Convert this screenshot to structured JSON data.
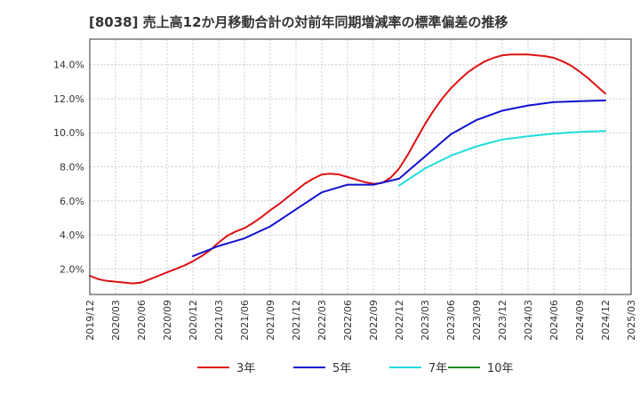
{
  "chart_data": {
    "type": "line",
    "title": "[8038]  売上高12か月移動合計の対前年同期増減率の標準偏差の推移",
    "xlabel": "",
    "ylabel": "",
    "x_ticks": [
      "2019/12",
      "2020/03",
      "2020/06",
      "2020/09",
      "2020/12",
      "2021/03",
      "2021/06",
      "2021/09",
      "2021/12",
      "2022/03",
      "2022/06",
      "2022/09",
      "2022/12",
      "2023/03",
      "2023/06",
      "2023/09",
      "2023/12",
      "2024/03",
      "2024/06",
      "2024/09",
      "2024/12",
      "2025/03"
    ],
    "y_ticks": [
      "2.0%",
      "4.0%",
      "6.0%",
      "8.0%",
      "10.0%",
      "12.0%",
      "14.0%"
    ],
    "ylim": [
      0.5,
      15.5
    ],
    "grid": true,
    "legend_position": "bottom",
    "series": [
      {
        "name": "3年",
        "color": "#dd1111",
        "x": [
          "2019/12",
          "2020/01",
          "2020/02",
          "2020/03",
          "2020/04",
          "2020/05",
          "2020/06",
          "2020/07",
          "2020/08",
          "2020/09",
          "2020/10",
          "2020/11",
          "2020/12",
          "2021/01",
          "2021/02",
          "2021/03",
          "2021/04",
          "2021/05",
          "2021/06",
          "2021/07",
          "2021/08",
          "2021/09",
          "2021/10",
          "2021/11",
          "2021/12",
          "2022/01",
          "2022/02",
          "2022/03",
          "2022/04",
          "2022/05",
          "2022/06",
          "2022/07",
          "2022/08",
          "2022/09",
          "2022/10",
          "2022/11",
          "2022/12",
          "2023/01",
          "2023/02",
          "2023/03",
          "2023/04",
          "2023/05",
          "2023/06",
          "2023/07",
          "2023/08",
          "2023/09",
          "2023/10",
          "2023/11",
          "2023/12",
          "2024/01",
          "2024/02",
          "2024/03",
          "2024/04",
          "2024/05",
          "2024/06",
          "2024/07",
          "2024/08",
          "2024/09",
          "2024/10",
          "2024/11",
          "2024/12"
        ],
        "values": [
          1.6,
          1.4,
          1.3,
          1.25,
          1.2,
          1.15,
          1.2,
          1.4,
          1.6,
          1.8,
          2.0,
          2.2,
          2.45,
          2.75,
          3.1,
          3.55,
          3.95,
          4.2,
          4.4,
          4.7,
          5.05,
          5.45,
          5.8,
          6.2,
          6.6,
          7.0,
          7.3,
          7.55,
          7.6,
          7.55,
          7.4,
          7.25,
          7.1,
          7.0,
          7.05,
          7.35,
          7.9,
          8.7,
          9.6,
          10.5,
          11.3,
          12.0,
          12.6,
          13.1,
          13.55,
          13.9,
          14.2,
          14.4,
          14.55,
          14.6,
          14.6,
          14.6,
          14.55,
          14.5,
          14.4,
          14.2,
          13.95,
          13.6,
          13.2,
          12.75,
          12.3
        ]
      },
      {
        "name": "5年",
        "color": "#1111cc",
        "x": [
          "2020/12",
          "2021/03",
          "2021/06",
          "2021/09",
          "2021/12",
          "2022/03",
          "2022/06",
          "2022/09",
          "2022/12",
          "2023/03",
          "2023/06",
          "2023/09",
          "2023/12",
          "2024/03",
          "2024/06",
          "2024/09",
          "2024/12"
        ],
        "values": [
          2.75,
          3.35,
          3.8,
          4.5,
          5.5,
          6.5,
          6.95,
          6.95,
          7.3,
          8.6,
          9.9,
          10.75,
          11.3,
          11.6,
          11.8,
          11.85,
          11.9
        ]
      },
      {
        "name": "7年",
        "color": "#22dddd",
        "x": [
          "2022/12",
          "2023/03",
          "2023/06",
          "2023/09",
          "2023/12",
          "2024/03",
          "2024/06",
          "2024/09",
          "2024/12"
        ],
        "values": [
          6.9,
          7.9,
          8.65,
          9.2,
          9.6,
          9.8,
          9.95,
          10.05,
          10.1
        ]
      },
      {
        "name": "10年",
        "color": "#228822",
        "x": [],
        "values": []
      }
    ]
  }
}
